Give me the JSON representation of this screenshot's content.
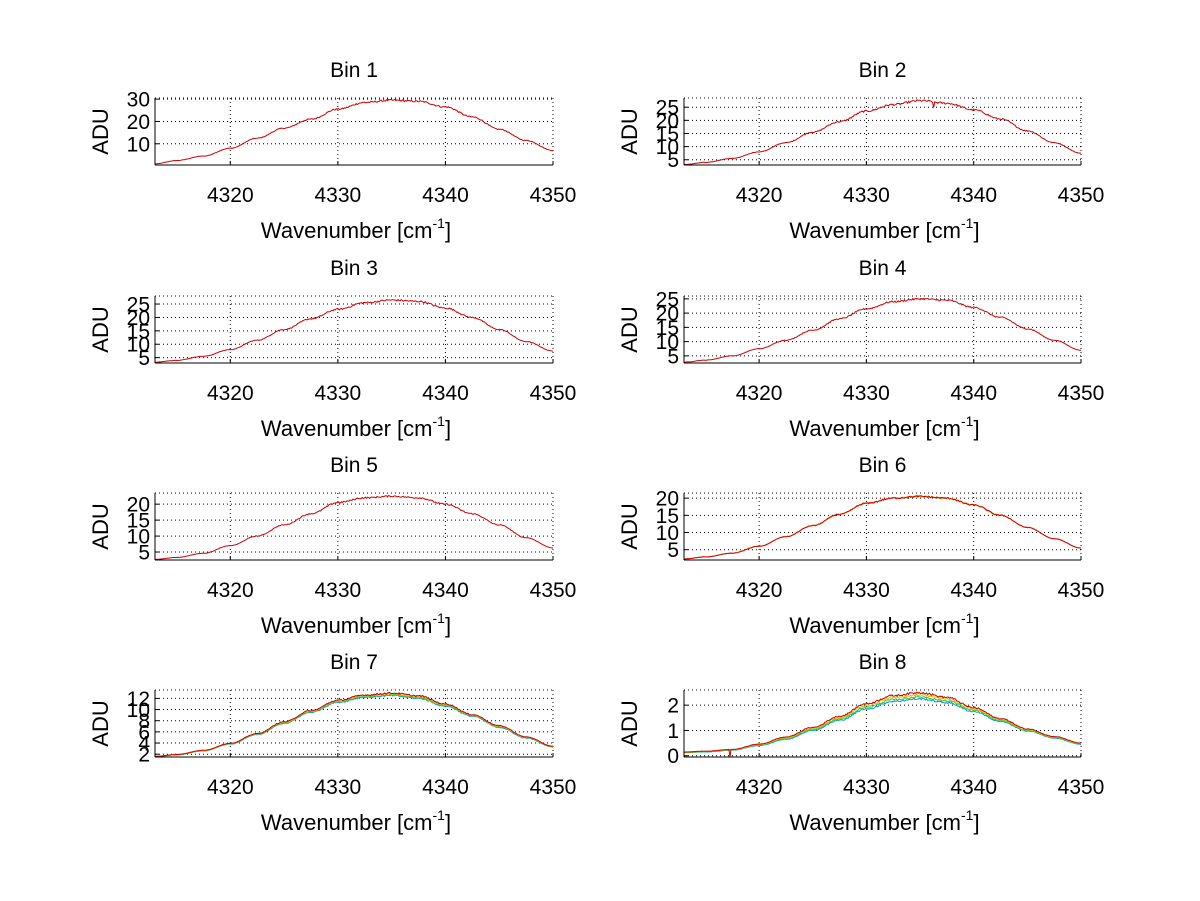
{
  "chart_data": [
    {
      "type": "line",
      "title": "Bin 1",
      "xlabel": "Wavenumber [cm",
      "xlabel_sup": "-1",
      "xlabel_end": "]",
      "ylabel": "ADU",
      "xlim": [
        4313,
        4350
      ],
      "ylim": [
        0.5,
        30.5
      ],
      "grid": true,
      "xticks": [
        4320,
        4330,
        4340,
        4350
      ],
      "yticks": [
        10,
        20,
        30
      ],
      "x": [
        4313,
        4315,
        4317.5,
        4320,
        4322.5,
        4325,
        4327.5,
        4330,
        4332.5,
        4335,
        4337.5,
        4340,
        4342.5,
        4345,
        4347.5,
        4350
      ],
      "series": [
        {
          "name": "s1",
          "color": "#cc0000",
          "noise": 0.4,
          "values": [
            1,
            2.5,
            4.5,
            8,
            12.5,
            17,
            21,
            25.5,
            28.5,
            29.5,
            29,
            26.5,
            22,
            16.5,
            11.5,
            7
          ]
        }
      ]
    },
    {
      "type": "line",
      "title": "Bin 2",
      "xlabel": "Wavenumber [cm",
      "xlabel_sup": "-1",
      "xlabel_end": "]",
      "ylabel": "ADU",
      "xlim": [
        4313,
        4350
      ],
      "ylim": [
        3,
        28.5
      ],
      "grid": true,
      "xticks": [
        4320,
        4330,
        4340,
        4350
      ],
      "yticks": [
        5,
        10,
        15,
        20,
        25
      ],
      "x": [
        4313,
        4315,
        4317.5,
        4320,
        4322.5,
        4325,
        4327.5,
        4330,
        4332.5,
        4335,
        4337.5,
        4340,
        4342.5,
        4345,
        4347.5,
        4350
      ],
      "series": [
        {
          "name": "s1",
          "color": "#cc0000",
          "noise": 0.4,
          "values": [
            3.2,
            4,
            5.5,
            8,
            11.5,
            15.5,
            19.5,
            23.5,
            26,
            27.5,
            26.5,
            24,
            20.5,
            16,
            11.5,
            7.5
          ]
        }
      ]
    },
    {
      "type": "line",
      "title": "Bin 3",
      "xlabel": "Wavenumber [cm",
      "xlabel_sup": "-1",
      "xlabel_end": "]",
      "ylabel": "ADU",
      "xlim": [
        4313,
        4350
      ],
      "ylim": [
        3,
        28
      ],
      "grid": true,
      "xticks": [
        4320,
        4330,
        4340,
        4350
      ],
      "yticks": [
        5,
        10,
        15,
        20,
        25
      ],
      "x": [
        4313,
        4315,
        4317.5,
        4320,
        4322.5,
        4325,
        4327.5,
        4330,
        4332.5,
        4335,
        4337.5,
        4340,
        4342.5,
        4345,
        4347.5,
        4350
      ],
      "series": [
        {
          "name": "s1",
          "color": "#cc0000",
          "noise": 0.35,
          "values": [
            3.3,
            4,
            5.5,
            8,
            11.5,
            15.5,
            19.5,
            23,
            25.5,
            26.5,
            26,
            23.5,
            20,
            15.5,
            11,
            7.5
          ]
        }
      ]
    },
    {
      "type": "line",
      "title": "Bin 4",
      "xlabel": "Wavenumber [cm",
      "xlabel_sup": "-1",
      "xlabel_end": "]",
      "ylabel": "ADU",
      "xlim": [
        4313,
        4350
      ],
      "ylim": [
        2.5,
        26
      ],
      "grid": true,
      "xticks": [
        4320,
        4330,
        4340,
        4350
      ],
      "yticks": [
        5,
        10,
        15,
        20,
        25
      ],
      "x": [
        4313,
        4315,
        4317.5,
        4320,
        4322.5,
        4325,
        4327.5,
        4330,
        4332.5,
        4335,
        4337.5,
        4340,
        4342.5,
        4345,
        4347.5,
        4350
      ],
      "series": [
        {
          "name": "s1",
          "color": "#cc0000",
          "noise": 0.3,
          "values": [
            2.8,
            3.5,
            5,
            7.5,
            10.5,
            14,
            18,
            21.5,
            24,
            25,
            24.5,
            22,
            18.5,
            14.5,
            10.5,
            7
          ]
        }
      ]
    },
    {
      "type": "line",
      "title": "Bin 5",
      "xlabel": "Wavenumber [cm",
      "xlabel_sup": "-1",
      "xlabel_end": "]",
      "ylabel": "ADU",
      "xlim": [
        4313,
        4350
      ],
      "ylim": [
        2.5,
        23.5
      ],
      "grid": true,
      "xticks": [
        4320,
        4330,
        4340,
        4350
      ],
      "yticks": [
        5,
        10,
        15,
        20
      ],
      "x": [
        4313,
        4315,
        4317.5,
        4320,
        4322.5,
        4325,
        4327.5,
        4330,
        4332.5,
        4335,
        4337.5,
        4340,
        4342.5,
        4345,
        4347.5,
        4350
      ],
      "series": [
        {
          "name": "s1",
          "color": "#cc0000",
          "noise": 0.25,
          "values": [
            2.7,
            3.3,
            4.6,
            7,
            10,
            13.5,
            17,
            20.5,
            22,
            22.5,
            22,
            20,
            17,
            13.5,
            9.5,
            6.3
          ]
        }
      ]
    },
    {
      "type": "line",
      "title": "Bin 6",
      "xlabel": "Wavenumber [cm",
      "xlabel_sup": "-1",
      "xlabel_end": "]",
      "ylabel": "ADU",
      "xlim": [
        4313,
        4350
      ],
      "ylim": [
        2,
        21.5
      ],
      "grid": true,
      "xticks": [
        4320,
        4330,
        4340,
        4350
      ],
      "yticks": [
        5,
        10,
        15,
        20
      ],
      "x": [
        4313,
        4315,
        4317.5,
        4320,
        4322.5,
        4325,
        4327.5,
        4330,
        4332.5,
        4335,
        4337.5,
        4340,
        4342.5,
        4345,
        4347.5,
        4350
      ],
      "series": [
        {
          "name": "s1",
          "color": "#e0a000",
          "noise": 0.25,
          "values": [
            2.3,
            2.9,
            4,
            6,
            8.8,
            12,
            15.3,
            18.5,
            20,
            20.5,
            20,
            18,
            15,
            11.5,
            8.2,
            5.5
          ]
        },
        {
          "name": "s2",
          "color": "#cc0000",
          "noise": 0.25,
          "values": [
            2.3,
            2.9,
            4,
            6,
            8.8,
            12,
            15.3,
            18.5,
            20,
            20.5,
            20,
            18,
            15,
            11.5,
            8.2,
            5.5
          ]
        }
      ]
    },
    {
      "type": "line",
      "title": "Bin 7",
      "xlabel": "Wavenumber [cm",
      "xlabel_sup": "-1",
      "xlabel_end": "]",
      "ylabel": "ADU",
      "xlim": [
        4313,
        4350
      ],
      "ylim": [
        1.5,
        13.5
      ],
      "grid": true,
      "xticks": [
        4320,
        4330,
        4340,
        4350
      ],
      "yticks": [
        2,
        4,
        6,
        8,
        10,
        12
      ],
      "x": [
        4313,
        4315,
        4317.5,
        4320,
        4322.5,
        4325,
        4327.5,
        4330,
        4332.5,
        4335,
        4337.5,
        4340,
        4342.5,
        4345,
        4347.5,
        4350
      ],
      "series": [
        {
          "name": "s1",
          "color": "#00a0c8",
          "noise": 0.15,
          "values": [
            1.6,
            1.9,
            2.6,
            3.8,
            5.5,
            7.5,
            9.5,
            11.3,
            12.2,
            12.5,
            12,
            10.6,
            8.8,
            6.8,
            4.9,
            3.3
          ]
        },
        {
          "name": "s2",
          "color": "#40c040",
          "noise": 0.15,
          "values": [
            1.6,
            1.9,
            2.6,
            3.85,
            5.6,
            7.6,
            9.6,
            11.4,
            12.35,
            12.65,
            12.15,
            10.75,
            8.9,
            6.9,
            5,
            3.35
          ]
        },
        {
          "name": "s3",
          "color": "#e0c000",
          "noise": 0.15,
          "values": [
            1.6,
            1.95,
            2.65,
            3.9,
            5.65,
            7.7,
            9.7,
            11.5,
            12.5,
            12.8,
            12.3,
            10.9,
            9,
            7,
            5.05,
            3.4
          ]
        },
        {
          "name": "s4",
          "color": "#cc0000",
          "noise": 0.15,
          "values": [
            1.6,
            1.95,
            2.7,
            3.95,
            5.7,
            7.8,
            9.8,
            11.65,
            12.6,
            12.95,
            12.45,
            11,
            9.1,
            7.1,
            5.1,
            3.45
          ]
        }
      ]
    },
    {
      "type": "line",
      "title": "Bin 8",
      "xlabel": "Wavenumber [cm",
      "xlabel_sup": "-1",
      "xlabel_end": "]",
      "ylabel": "ADU",
      "xlim": [
        4313,
        4350
      ],
      "ylim": [
        -0.05,
        2.6
      ],
      "grid": true,
      "xticks": [
        4320,
        4330,
        4340,
        4350
      ],
      "yticks": [
        0,
        1,
        2
      ],
      "x": [
        4313,
        4315,
        4317.5,
        4320,
        4322.5,
        4325,
        4327.5,
        4330,
        4332.5,
        4335,
        4337.5,
        4340,
        4342.5,
        4345,
        4347.5,
        4350
      ],
      "series": [
        {
          "name": "s1",
          "color": "#00a0c8",
          "noise": 0.04,
          "values": [
            0.12,
            0.15,
            0.22,
            0.4,
            0.65,
            1.0,
            1.4,
            1.85,
            2.15,
            2.25,
            2.1,
            1.75,
            1.35,
            0.98,
            0.7,
            0.45
          ]
        },
        {
          "name": "s2",
          "color": "#40c040",
          "noise": 0.04,
          "values": [
            0.13,
            0.16,
            0.23,
            0.42,
            0.68,
            1.04,
            1.45,
            1.92,
            2.22,
            2.33,
            2.17,
            1.8,
            1.39,
            1.0,
            0.72,
            0.47
          ]
        },
        {
          "name": "s3",
          "color": "#e0c000",
          "noise": 0.04,
          "values": [
            0.14,
            0.17,
            0.24,
            0.44,
            0.71,
            1.08,
            1.5,
            1.99,
            2.3,
            2.41,
            2.24,
            1.85,
            1.43,
            1.03,
            0.74,
            0.48
          ]
        },
        {
          "name": "s4",
          "color": "#cc0000",
          "noise": 0.04,
          "values": [
            0.15,
            0.18,
            0.25,
            0.46,
            0.74,
            1.12,
            1.56,
            2.06,
            2.38,
            2.5,
            2.31,
            1.9,
            1.47,
            1.06,
            0.76,
            0.5
          ]
        }
      ]
    }
  ]
}
